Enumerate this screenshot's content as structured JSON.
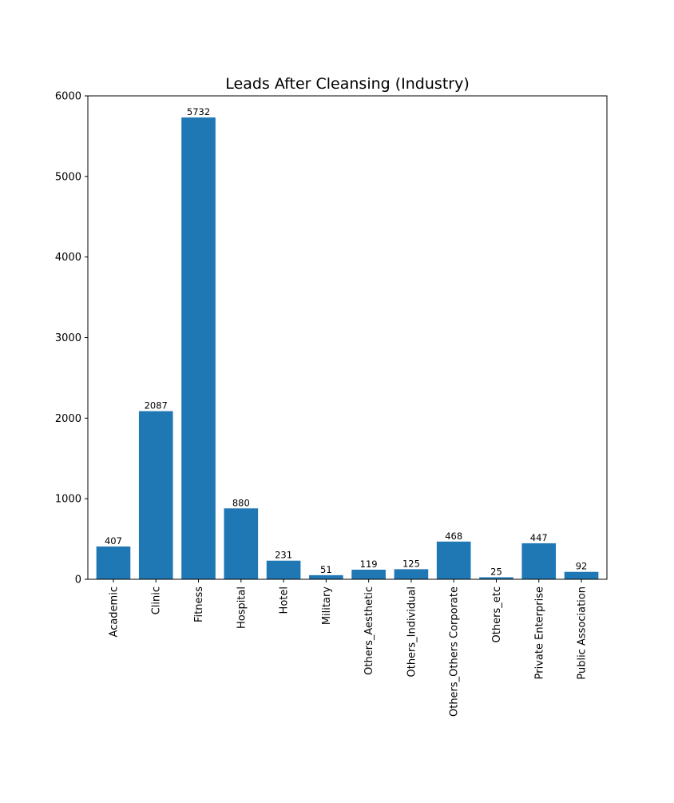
{
  "chart_data": {
    "type": "bar",
    "title": "Leads After Cleansing (Industry)",
    "xlabel": "",
    "ylabel": "",
    "categories": [
      "Academic",
      "Clinic",
      "Fitness",
      "Hospital",
      "Hotel",
      "Military",
      "Others_Aesthetic",
      "Others_Individual",
      "Others_Others Corporate",
      "Others_etc",
      "Private Enterprise",
      "Public Association"
    ],
    "values": [
      407,
      2087,
      5732,
      880,
      231,
      51,
      119,
      125,
      468,
      25,
      447,
      92
    ],
    "ylim": [
      0,
      6000
    ],
    "yticks": [
      0,
      1000,
      2000,
      3000,
      4000,
      5000,
      6000
    ],
    "bar_color": "#1f77b4",
    "grid": false,
    "legend": "none",
    "data_labels": true,
    "xtick_rotation": "vertical"
  }
}
